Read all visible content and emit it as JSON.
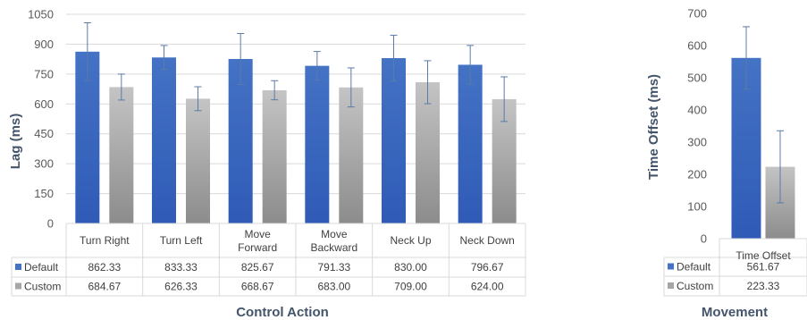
{
  "colors": {
    "default_top": "#4472C4",
    "default_bottom": "#2F5BB7",
    "custom_top": "#BFBFBF",
    "custom_bottom": "#8C8C8C",
    "axis_title": "#44546A",
    "grid": "#D9D9D9",
    "error_bar": "#5A7CA8"
  },
  "chart_data": [
    {
      "type": "bar",
      "xlabel": "Control Action",
      "ylabel": "Lag (ms)",
      "ylim": [
        0,
        1050
      ],
      "yticks": [
        "0",
        "150",
        "300",
        "450",
        "600",
        "750",
        "900",
        "1050"
      ],
      "grid": true,
      "legend": "table-below",
      "categories": [
        {
          "line1": "Turn Right",
          "line2": ""
        },
        {
          "line1": "Turn Left",
          "line2": ""
        },
        {
          "line1": "Move",
          "line2": "Forward"
        },
        {
          "line1": "Move",
          "line2": "Backward"
        },
        {
          "line1": "Neck Up",
          "line2": ""
        },
        {
          "line1": "Neck Down",
          "line2": ""
        }
      ],
      "series": [
        {
          "name": "Default",
          "values": [
            862.33,
            833.33,
            825.67,
            791.33,
            830.0,
            796.67
          ],
          "labels": [
            "862.33",
            "833.33",
            "825.67",
            "791.33",
            "830.00",
            "796.67"
          ],
          "error": [
            145,
            60,
            128,
            72,
            115,
            97
          ]
        },
        {
          "name": "Custom",
          "values": [
            684.67,
            626.33,
            668.67,
            683.0,
            709.0,
            624.0
          ],
          "labels": [
            "684.67",
            "626.33",
            "668.67",
            "683.00",
            "709.00",
            "624.00"
          ],
          "error": [
            65,
            60,
            48,
            98,
            108,
            112
          ]
        }
      ]
    },
    {
      "type": "bar",
      "xlabel": "Movement",
      "ylabel": "Time Offset (ms)",
      "ylim": [
        0,
        700
      ],
      "yticks": [
        "0",
        "100",
        "200",
        "300",
        "400",
        "500",
        "600",
        "700"
      ],
      "grid": false,
      "legend": "table-below",
      "categories": [
        {
          "line1": "Time Offset",
          "line2": ""
        }
      ],
      "series": [
        {
          "name": "Default",
          "values": [
            561.67
          ],
          "labels": [
            "561.67"
          ],
          "error": [
            97
          ]
        },
        {
          "name": "Custom",
          "values": [
            223.33
          ],
          "labels": [
            "223.33"
          ],
          "error": [
            112
          ]
        }
      ]
    }
  ]
}
